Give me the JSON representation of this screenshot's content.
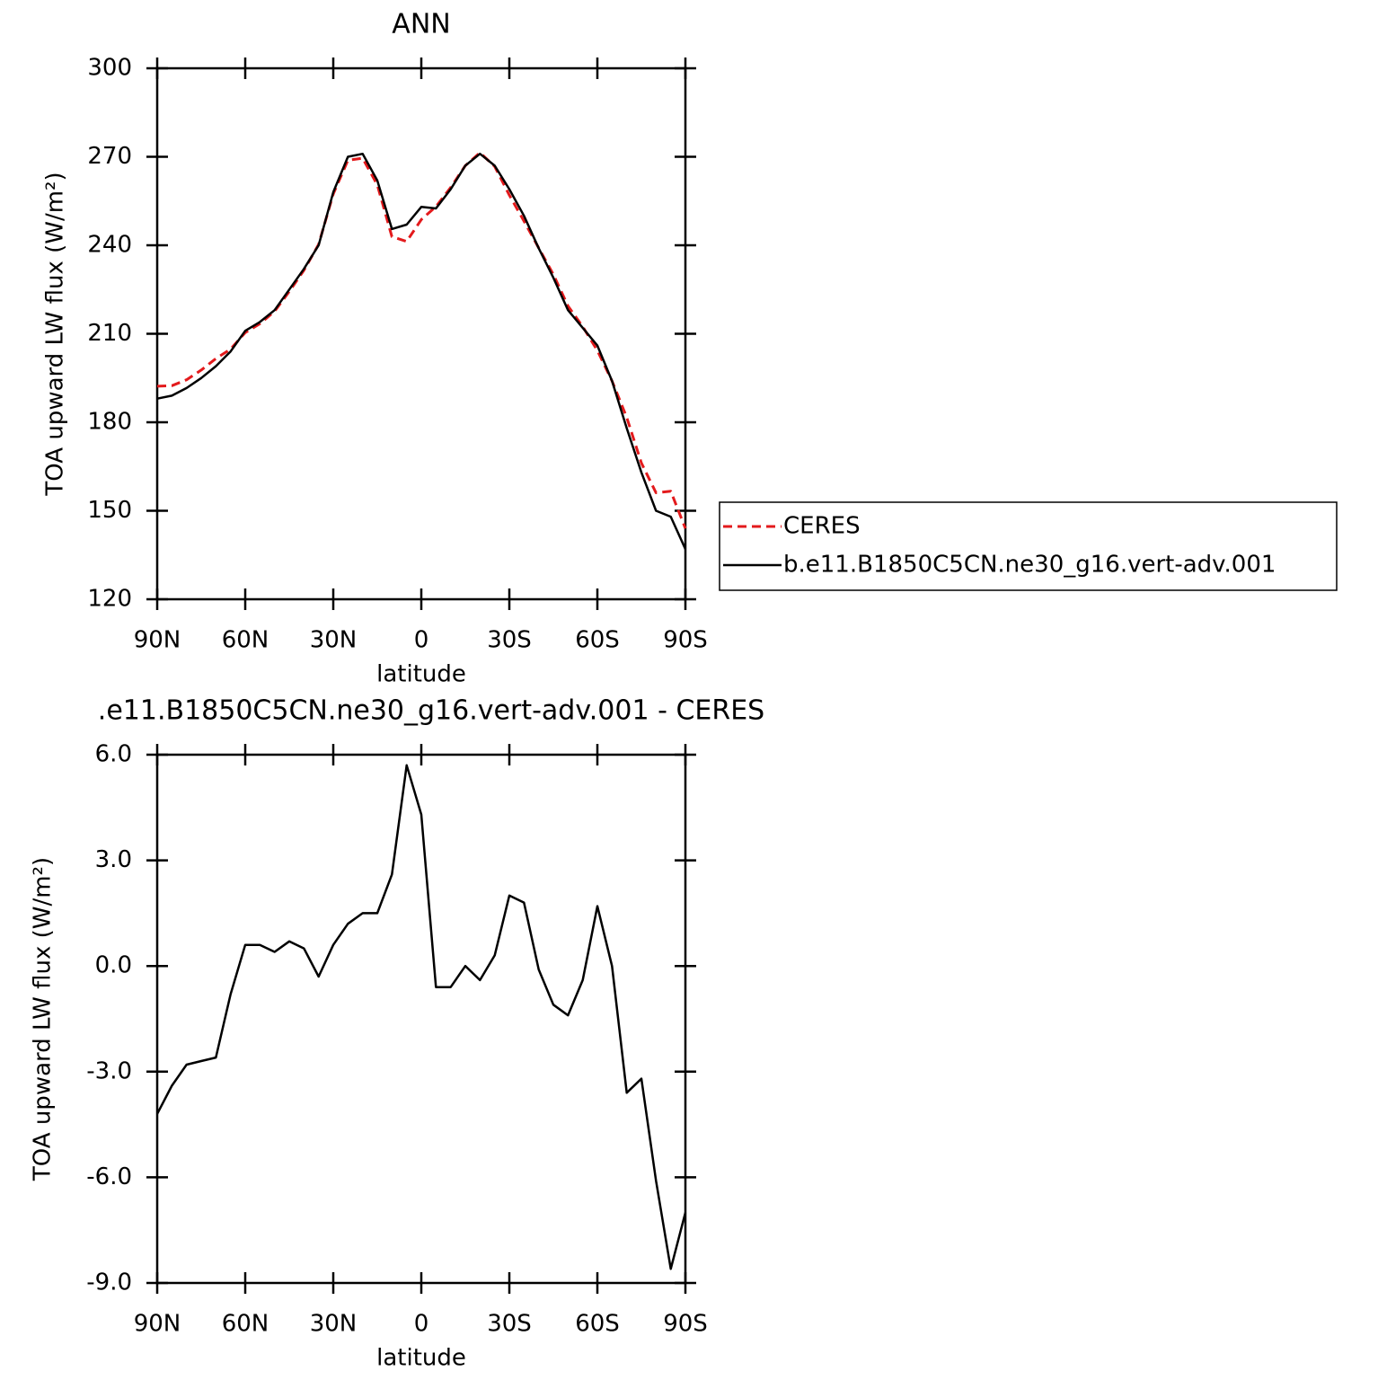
{
  "chart_data": [
    {
      "type": "line",
      "title": "ANN",
      "xlabel": "latitude",
      "ylabel": "TOA upward LW flux (W/m²)",
      "x": [
        90,
        85,
        80,
        75,
        70,
        65,
        60,
        55,
        50,
        45,
        40,
        35,
        30,
        25,
        20,
        15,
        10,
        5,
        0,
        -5,
        -10,
        -15,
        -20,
        -25,
        -30,
        -35,
        -40,
        -45,
        -50,
        -55,
        -60,
        -65,
        -70,
        -75,
        -80,
        -85,
        -90
      ],
      "xlim": [
        90,
        -90
      ],
      "xticks": [
        {
          "value": 90,
          "label": "90N"
        },
        {
          "value": 60,
          "label": "60N"
        },
        {
          "value": 30,
          "label": "30N"
        },
        0,
        {
          "value": -30,
          "label": "30S"
        },
        {
          "value": -60,
          "label": "60S"
        },
        {
          "value": -90,
          "label": "90S"
        }
      ],
      "ylim": [
        120,
        300
      ],
      "yticks": [
        120,
        150,
        180,
        210,
        240,
        270,
        300
      ],
      "legend": "right",
      "series": [
        {
          "name": "CERES",
          "color": "#e31a1c",
          "dashed": true,
          "values": [
            192.2,
            192.4,
            194.4,
            197.7,
            201.6,
            204.8,
            210.4,
            213.4,
            217.6,
            224.3,
            231.5,
            240.3,
            257.4,
            268.8,
            269.5,
            260.5,
            242.9,
            241.3,
            248.7,
            253.1,
            259.6,
            267,
            271.4,
            266.7,
            257,
            248.2,
            239.1,
            230.1,
            219.4,
            212.4,
            204.3,
            194,
            181.6,
            166.2,
            156.1,
            156.6,
            144
          ]
        },
        {
          "name": "b.e11.B1850C5CN.ne30_g16.vert-adv.001",
          "color": "#000000",
          "dashed": false,
          "values": [
            188,
            189,
            191.6,
            195,
            199,
            204,
            211,
            214,
            218,
            225,
            232,
            240,
            258,
            270,
            271,
            262,
            245.5,
            247,
            253,
            252.5,
            259,
            267,
            271,
            267,
            259,
            250,
            239,
            229,
            218,
            212,
            206,
            194,
            178,
            163,
            150,
            148,
            137
          ]
        }
      ]
    },
    {
      "type": "line",
      "title": ".e11.B1850C5CN.ne30_g16.vert-adv.001 - CERES",
      "xlabel": "latitude",
      "ylabel": "TOA upward LW flux (W/m²)",
      "x": [
        90,
        85,
        80,
        75,
        70,
        65,
        60,
        55,
        50,
        45,
        40,
        35,
        30,
        25,
        20,
        15,
        10,
        5,
        0,
        -5,
        -10,
        -15,
        -20,
        -25,
        -30,
        -35,
        -40,
        -45,
        -50,
        -55,
        -60,
        -65,
        -70,
        -75,
        -80,
        -85,
        -90
      ],
      "xlim": [
        90,
        -90
      ],
      "xticks": [
        {
          "value": 90,
          "label": "90N"
        },
        {
          "value": 60,
          "label": "60N"
        },
        {
          "value": 30,
          "label": "30N"
        },
        0,
        {
          "value": -30,
          "label": "30S"
        },
        {
          "value": -60,
          "label": "60S"
        },
        {
          "value": -90,
          "label": "90S"
        }
      ],
      "ylim": [
        -9,
        6
      ],
      "yticks": [
        {
          "value": -9,
          "label": "-9.0"
        },
        {
          "value": -6,
          "label": "-6.0"
        },
        {
          "value": -3,
          "label": "-3.0"
        },
        {
          "value": 0,
          "label": "0.0"
        },
        {
          "value": 3,
          "label": "3.0"
        },
        {
          "value": 6,
          "label": "6.0"
        }
      ],
      "color": "#000000",
      "values": [
        -4.2,
        -3.4,
        -2.8,
        -2.7,
        -2.6,
        -0.8,
        0.6,
        0.6,
        0.4,
        0.7,
        0.5,
        -0.3,
        0.6,
        1.2,
        1.5,
        1.5,
        2.6,
        5.7,
        4.3,
        -0.6,
        -0.6,
        0,
        -0.4,
        0.3,
        2,
        1.8,
        -0.1,
        -1.1,
        -1.4,
        -0.4,
        1.7,
        0,
        -3.6,
        -3.2,
        -6.1,
        -8.6,
        -7
      ]
    }
  ]
}
